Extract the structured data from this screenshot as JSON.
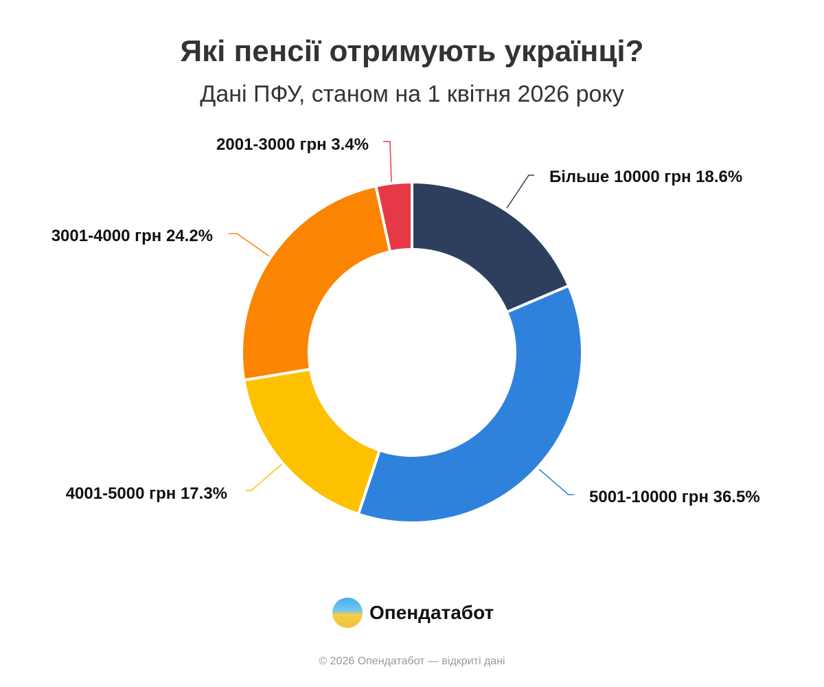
{
  "title": "Які пенсії отримують українці?",
  "subtitle": "Дані ПФУ, станом на 1 квітня 2026 року",
  "chart_data": {
    "type": "pie",
    "donut": true,
    "start": "top, clockwise",
    "categories": [
      "Більше 10000 грн",
      "5001-10000 грн",
      "4001-5000 грн",
      "3001-4000 грн",
      "2001-3000 грн"
    ],
    "values": [
      18.6,
      36.5,
      17.3,
      24.2,
      3.4
    ],
    "labels": [
      "Більше 10000 грн 18.6%",
      "5001-10000 грн 36.5%",
      "4001-5000 грн 17.3%",
      "3001-4000 грн 24.2%",
      "2001-3000 грн 3.4%"
    ],
    "colors": [
      "#2e3e5e",
      "#2e82dc",
      "#fdc100",
      "#fb8500",
      "#e63946"
    ],
    "unit": "%"
  },
  "logo": {
    "text": "Опендатабот"
  },
  "footer": "© 2026 Опендатабот — відкриті дані"
}
